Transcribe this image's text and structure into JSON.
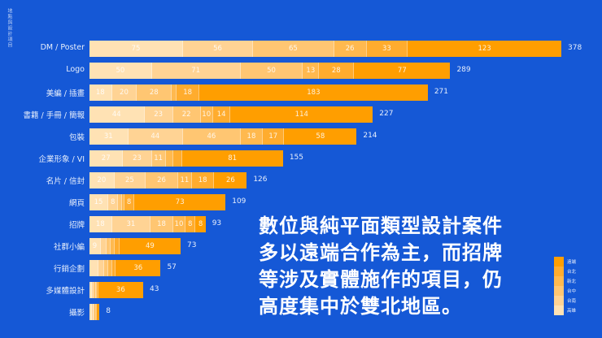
{
  "chart_data": {
    "type": "bar",
    "orientation": "horizontal",
    "stacked": true,
    "title": "地點與設計項目",
    "annotation": [
      "數位與純平面類型設計案件",
      "多以遠端合作為主，而招牌",
      "等涉及實體施作的項目，仍",
      "高度集中於雙北地區。"
    ],
    "categories": [
      "DM / Poster",
      "Logo",
      "美編 / 插畫",
      "書籍 / 手冊 / 簡報",
      "包裝",
      "企業形象 / VI",
      "名片 / 信封",
      "網頁",
      "招牌",
      "社群小編",
      "行銷企劃",
      "多媒體設計",
      "攝影"
    ],
    "series": [
      {
        "name": "高雄",
        "color": "#ffe2b4",
        "values": [
          75,
          50,
          18,
          44,
          31,
          27,
          20,
          15,
          18,
          9,
          7,
          2,
          2
        ]
      },
      {
        "name": "台南",
        "color": "#ffd394",
        "values": [
          56,
          71,
          20,
          23,
          44,
          23,
          25,
          8,
          31,
          5,
          5,
          1,
          1
        ]
      },
      {
        "name": "台中",
        "color": "#ffc672",
        "values": [
          65,
          50,
          28,
          22,
          46,
          11,
          26,
          3,
          18,
          3,
          3,
          2,
          1
        ]
      },
      {
        "name": "新北",
        "color": "#ffb94f",
        "values": [
          26,
          13,
          4,
          10,
          18,
          6,
          11,
          2,
          10,
          3,
          3,
          1,
          1
        ]
      },
      {
        "name": "台北",
        "color": "#ffac2e",
        "values": [
          33,
          28,
          18,
          14,
          17,
          7,
          18,
          8,
          8,
          4,
          3,
          1,
          1
        ]
      },
      {
        "name": "遠端",
        "color": "#ff9e00",
        "values": [
          123,
          77,
          183,
          114,
          58,
          81,
          26,
          73,
          8,
          49,
          36,
          36,
          2
        ]
      }
    ],
    "totals": [
      378,
      289,
      271,
      227,
      214,
      155,
      126,
      109,
      93,
      73,
      57,
      43,
      8
    ],
    "legend": {
      "position": "bottom-right",
      "order": [
        "遠端",
        "台北",
        "新北",
        "台中",
        "台南",
        "高雄"
      ]
    },
    "xlabel": "",
    "ylabel": "",
    "grid": false,
    "background": "#1558d6"
  },
  "labels_shown_threshold": 8
}
